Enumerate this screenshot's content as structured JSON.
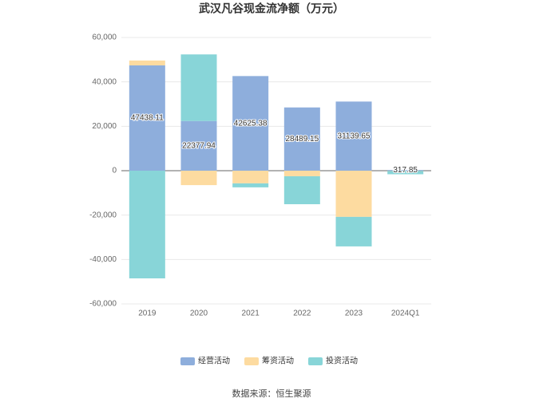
{
  "chart_data": {
    "type": "stacked_bar",
    "title": "武汉凡谷现金流净额（万元）",
    "categories": [
      "2019",
      "2020",
      "2021",
      "2022",
      "2023",
      "2024Q1"
    ],
    "series": [
      {
        "name": "经营活动",
        "color": "#8eaedc",
        "values": [
          47438.11,
          22377.94,
          42625.38,
          28489.15,
          31139.65,
          317.85
        ]
      },
      {
        "name": "筹资活动",
        "color": "#fddba0",
        "values": [
          2200,
          -6500,
          -5700,
          -2500,
          -20800,
          -100
        ]
      },
      {
        "name": "投资活动",
        "color": "#88d5d8",
        "values": [
          -48500,
          30000,
          -1800,
          -12600,
          -13300,
          -1500
        ]
      }
    ],
    "ylim": [
      -60000,
      60000
    ],
    "yticks": [
      {
        "value": -60000,
        "label": "-60,000"
      },
      {
        "value": -40000,
        "label": "-40,000"
      },
      {
        "value": -20000,
        "label": "-20,000"
      },
      0,
      {
        "value": 20000,
        "label": "20,000"
      },
      {
        "value": 40000,
        "label": "40,000"
      },
      {
        "value": 60000,
        "label": "60,000"
      }
    ],
    "grid": true,
    "legend": "bottom",
    "source": "数据来源：恒生聚源"
  }
}
